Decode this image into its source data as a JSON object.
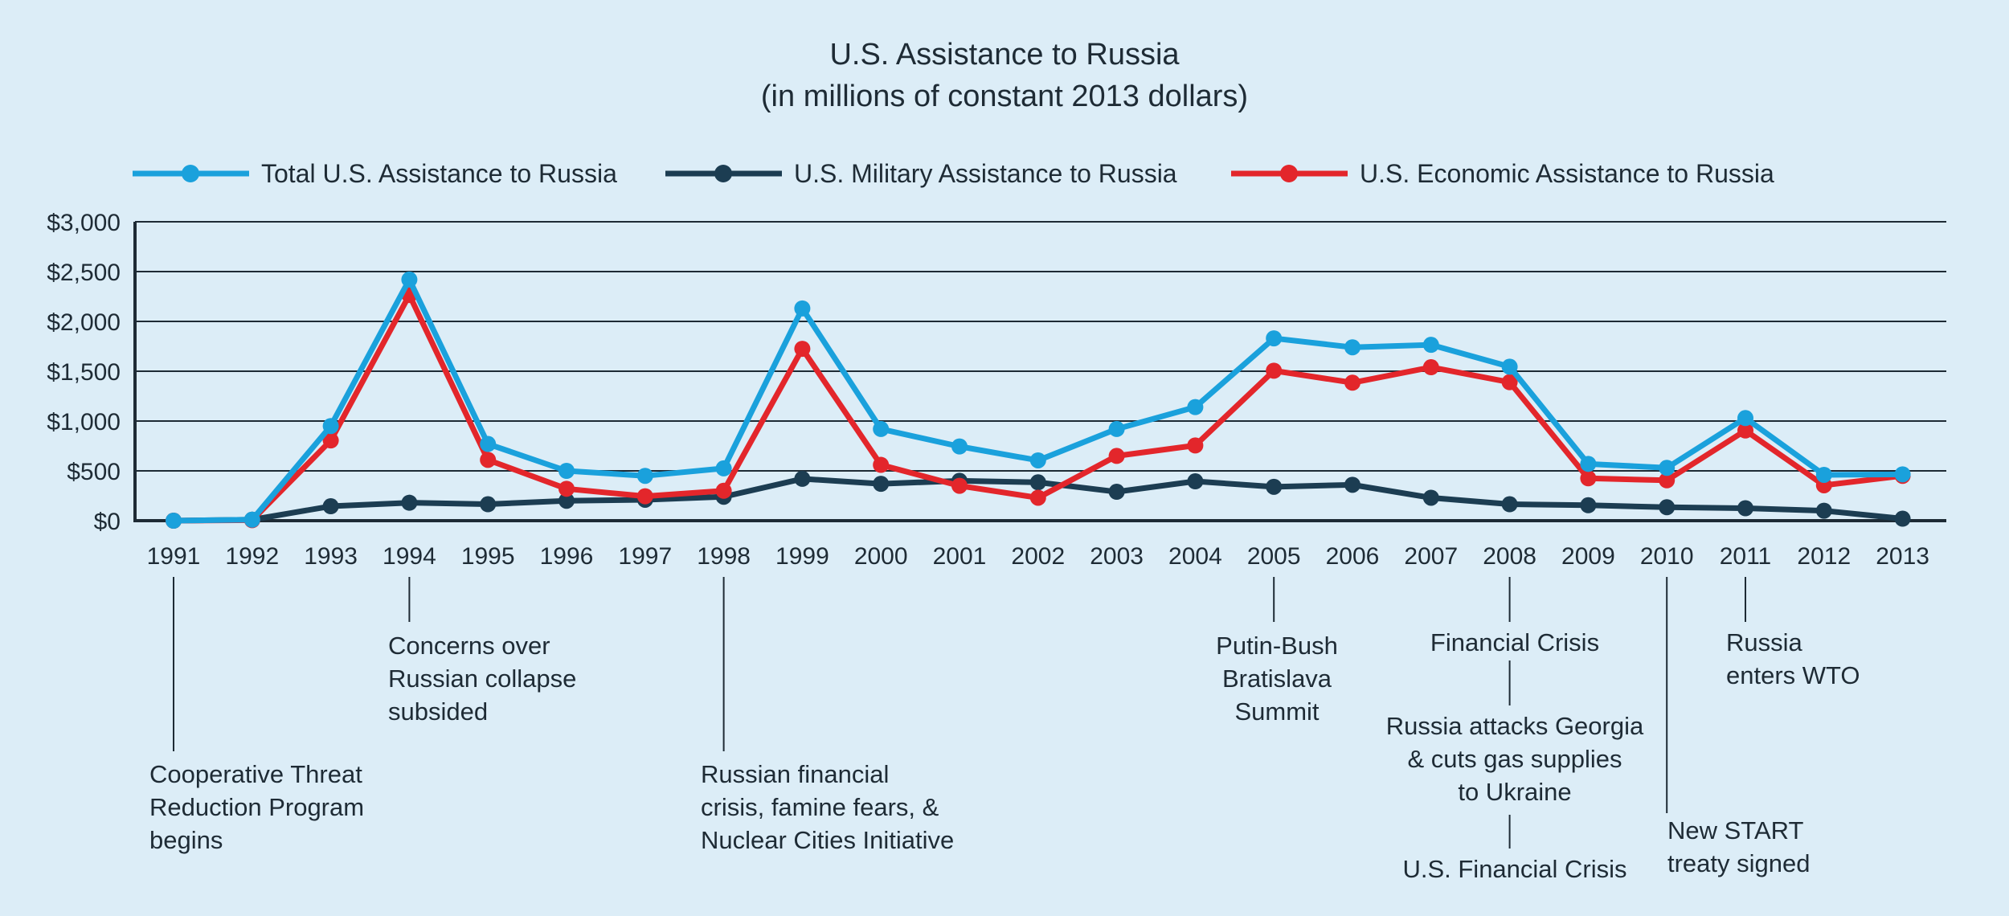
{
  "colors": {
    "background": "#dcedf7",
    "total": "#1aa1dc",
    "military": "#1c3d52",
    "economic": "#e3262b",
    "text": "#1e2b35"
  },
  "chart_data": {
    "type": "line",
    "title": "U.S. Assistance to Russia",
    "subtitle": "(in millions of constant 2013 dollars)",
    "xlabel": "",
    "ylabel": "",
    "ylim": [
      0,
      3000
    ],
    "y_ticks": [
      {
        "value": 0,
        "label": "$0"
      },
      {
        "value": 500,
        "label": "$500"
      },
      {
        "value": 1000,
        "label": "$1,000"
      },
      {
        "value": 1500,
        "label": "$1,500"
      },
      {
        "value": 2000,
        "label": "$2,000"
      },
      {
        "value": 2500,
        "label": "$2,500"
      },
      {
        "value": 3000,
        "label": "$3,000"
      }
    ],
    "grid": true,
    "legend_position": "top",
    "x": [
      "1991",
      "1992",
      "1993",
      "1994",
      "1995",
      "1996",
      "1997",
      "1998",
      "1999",
      "2000",
      "2001",
      "2002",
      "2003",
      "2004",
      "2005",
      "2006",
      "2007",
      "2008",
      "2009",
      "2010",
      "2011",
      "2012",
      "2013"
    ],
    "series": [
      {
        "key": "total",
        "name": "Total U.S. Assistance to Russia",
        "color": "#1aa1dc",
        "values": [
          0,
          10,
          950,
          2420,
          770,
          500,
          450,
          525,
          2130,
          920,
          745,
          605,
          920,
          1140,
          1830,
          1740,
          1765,
          1545,
          570,
          530,
          1030,
          460,
          465
        ]
      },
      {
        "key": "military",
        "name": "U.S. Military Assistance to Russia",
        "color": "#1c3d52",
        "values": [
          0,
          10,
          145,
          180,
          165,
          200,
          210,
          240,
          420,
          370,
          400,
          385,
          290,
          395,
          340,
          360,
          230,
          165,
          155,
          135,
          125,
          100,
          20
        ]
      },
      {
        "key": "economic",
        "name": "U.S. Economic Assistance to Russia",
        "color": "#e3262b",
        "values": [
          0,
          5,
          805,
          2265,
          610,
          320,
          245,
          300,
          1725,
          560,
          350,
          230,
          650,
          755,
          1505,
          1385,
          1540,
          1390,
          425,
          405,
          905,
          355,
          450
        ]
      }
    ],
    "annotations": [
      {
        "year": "1991",
        "lines": [
          "Cooperative Threat",
          "Reduction Program",
          "begins"
        ]
      },
      {
        "year": "1994",
        "lines": [
          "Concerns over",
          "Russian collapse",
          "subsided"
        ]
      },
      {
        "year": "1998",
        "lines": [
          "Russian financial",
          "crisis, famine fears, &",
          "Nuclear Cities Initiative"
        ]
      },
      {
        "year": "2005",
        "lines": [
          "Putin-Bush",
          "Bratislava",
          "Summit"
        ]
      },
      {
        "year": "2008",
        "lines": [
          "Financial Crisis"
        ]
      },
      {
        "year": "2008",
        "lines": [
          "Russia attacks Georgia",
          "& cuts gas supplies",
          "to Ukraine"
        ]
      },
      {
        "year": "2008",
        "lines": [
          "U.S. Financial Crisis"
        ]
      },
      {
        "year": "2010",
        "lines": [
          "New START",
          "treaty signed"
        ]
      },
      {
        "year": "2011",
        "lines": [
          "Russia",
          "enters WTO"
        ]
      }
    ]
  }
}
